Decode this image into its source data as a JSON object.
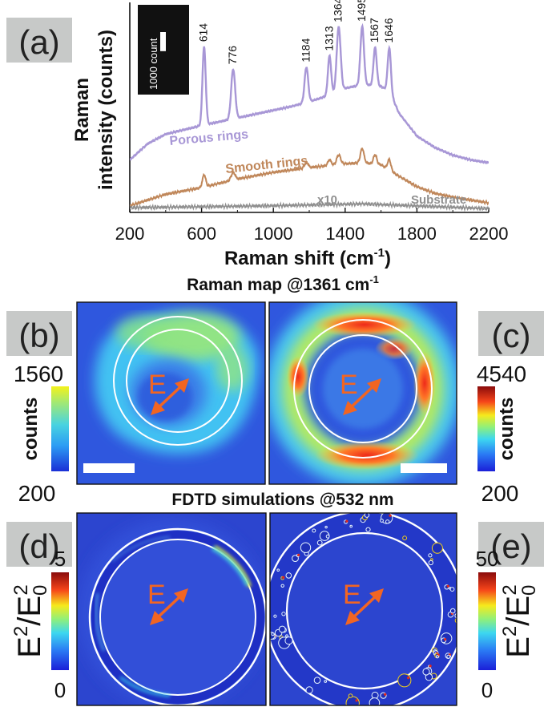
{
  "panel_labels": {
    "a": "(a)",
    "b": "(b)",
    "c": "(c)",
    "d": "(d)",
    "e": "(e)"
  },
  "titles": {
    "raman_map": "Raman map @1361 cm",
    "raman_map_sup": "-1",
    "fdtd": "FDTD simulations @532 nm"
  },
  "field_label": "E",
  "colorbars": {
    "b": {
      "max": "1560",
      "min": "200",
      "label": "counts"
    },
    "c": {
      "max": "4540",
      "min": "200",
      "label": "counts"
    },
    "d": {
      "max": "5",
      "min": "0",
      "label_main": "E",
      "label_sup": "2",
      "label_sep": "/E",
      "label_sub": "0",
      "label_sup2": "2"
    },
    "e": {
      "max": "50",
      "min": "0",
      "label_main": "E",
      "label_sup": "2",
      "label_sep": "/E",
      "label_sub": "0",
      "label_sup2": "2"
    }
  },
  "colors": {
    "porous": "#a897d6",
    "smooth": "#c0875a",
    "substrate": "#8f8f8f",
    "field_arrow": "#f26522",
    "panel_label_bg": "#c7c9c8",
    "map_background": "#2a4ed8"
  },
  "chart_data": {
    "type": "line",
    "xlabel": "Raman shift (cm",
    "xlabel_sup": "-1",
    "xlabel_end": ")",
    "ylabel_line1": "Raman",
    "ylabel_line2": "intensity (counts)",
    "xlim": [
      200,
      2200
    ],
    "xticks": [
      "200",
      "600",
      "1000",
      "1400",
      "1800",
      "2200"
    ],
    "xtick_values": [
      200,
      600,
      1000,
      1400,
      1800,
      2200
    ],
    "ylim": [
      0,
      11000
    ],
    "scale_bar": {
      "label": "1000 count",
      "value": 1000
    },
    "peaks": [
      {
        "label": "614",
        "x": 614
      },
      {
        "label": "776",
        "x": 776
      },
      {
        "label": "1184",
        "x": 1184
      },
      {
        "label": "1313",
        "x": 1313
      },
      {
        "label": "1364",
        "x": 1364
      },
      {
        "label": "1495",
        "x": 1495
      },
      {
        "label": "1567",
        "x": 1567
      },
      {
        "label": "1646",
        "x": 1646
      }
    ],
    "series": [
      {
        "name": "Porous rings",
        "baseline": [
          [
            200,
            2750
          ],
          [
            300,
            3600
          ],
          [
            400,
            4100
          ],
          [
            600,
            4550
          ],
          [
            800,
            4950
          ],
          [
            1000,
            5350
          ],
          [
            1100,
            5550
          ],
          [
            1200,
            5800
          ],
          [
            1300,
            6100
          ],
          [
            1400,
            6500
          ],
          [
            1500,
            6700
          ],
          [
            1600,
            6600
          ],
          [
            1650,
            6300
          ],
          [
            1700,
            5200
          ],
          [
            1800,
            4000
          ],
          [
            1900,
            3400
          ],
          [
            2000,
            3000
          ],
          [
            2100,
            2750
          ],
          [
            2200,
            2600
          ]
        ],
        "peaks": [
          [
            614,
            4100,
            9
          ],
          [
            776,
            2600,
            11
          ],
          [
            1184,
            1850,
            10
          ],
          [
            1313,
            2050,
            9
          ],
          [
            1364,
            3350,
            11
          ],
          [
            1495,
            3050,
            10
          ],
          [
            1567,
            2000,
            9
          ],
          [
            1646,
            2300,
            9
          ]
        ]
      },
      {
        "name": "Smooth rings",
        "baseline": [
          [
            200,
            350
          ],
          [
            300,
            650
          ],
          [
            400,
            950
          ],
          [
            600,
            1300
          ],
          [
            800,
            1750
          ],
          [
            1000,
            2100
          ],
          [
            1200,
            2350
          ],
          [
            1400,
            2550
          ],
          [
            1500,
            2600
          ],
          [
            1600,
            2500
          ],
          [
            1700,
            1900
          ],
          [
            1800,
            1350
          ],
          [
            1900,
            1000
          ],
          [
            2000,
            800
          ],
          [
            2100,
            650
          ],
          [
            2200,
            500
          ]
        ],
        "peaks": [
          [
            614,
            650,
            9
          ],
          [
            776,
            400,
            11
          ],
          [
            1184,
            300,
            10
          ],
          [
            1313,
            300,
            9
          ],
          [
            1364,
            500,
            11
          ],
          [
            1495,
            750,
            10
          ],
          [
            1567,
            500,
            9
          ],
          [
            1646,
            550,
            9
          ]
        ]
      },
      {
        "name": "Substrate",
        "annotation": "x10",
        "baseline": [
          [
            200,
            250
          ],
          [
            1000,
            350
          ],
          [
            1500,
            450
          ],
          [
            2200,
            200
          ]
        ],
        "peaks": []
      }
    ]
  }
}
